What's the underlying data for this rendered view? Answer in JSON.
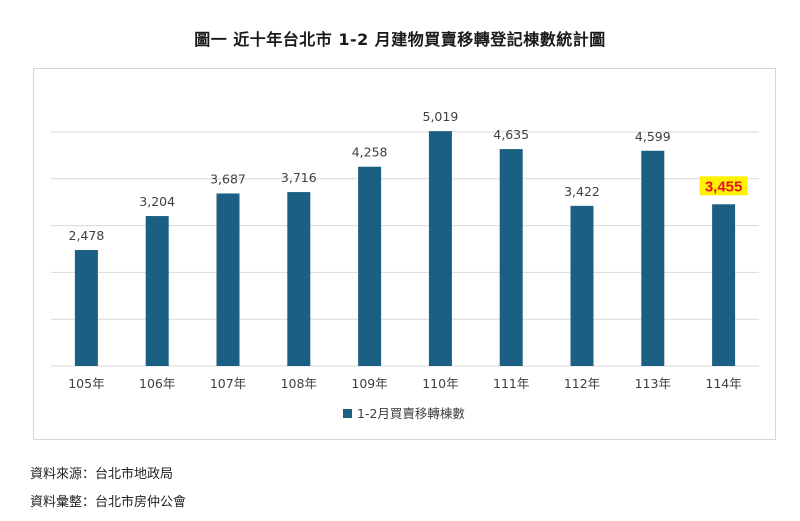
{
  "title": "圖一  近十年台北市 1-2 月建物買賣移轉登記棟數統計圖",
  "sources": [
    "資料來源：台北市地政局",
    "資料彙整：台北市房仲公會"
  ],
  "colors": {
    "bar": "#1b5f82",
    "highlight_text": "#e8141b",
    "highlight_bg": "#fff200",
    "grid": "#d9d9d9",
    "label": "#404040"
  },
  "chart_data": {
    "type": "bar",
    "title": "",
    "xlabel": "",
    "ylabel": "",
    "categories": [
      "105年",
      "106年",
      "107年",
      "108年",
      "109年",
      "110年",
      "111年",
      "112年",
      "113年",
      "114年"
    ],
    "series": [
      {
        "name": "1-2月買賣移轉棟數",
        "values": [
          2478,
          3204,
          3687,
          3716,
          4258,
          5019,
          4635,
          3422,
          4599,
          3455
        ]
      }
    ],
    "value_labels": [
      "2,478",
      "3,204",
      "3,687",
      "3,716",
      "4,258",
      "5,019",
      "4,635",
      "3,422",
      "4,599",
      "3,455"
    ],
    "highlight_index": 9,
    "ylim": [
      0,
      5000
    ],
    "y_gridlines": [
      0,
      1000,
      2000,
      3000,
      4000,
      5000
    ],
    "grid": true,
    "show_y_tick_labels": false,
    "legend_position": "bottom"
  }
}
